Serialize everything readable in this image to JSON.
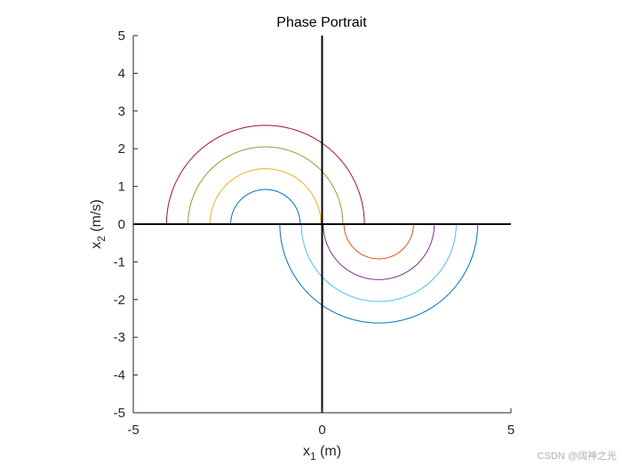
{
  "chart_data": {
    "type": "line",
    "title": "Phase Portrait",
    "xlabel": {
      "base": "x",
      "sub": "1",
      "unit": " (m)"
    },
    "ylabel": {
      "base": "x",
      "sub": "2",
      "unit": " (m/s)"
    },
    "xlim": [
      -5,
      5
    ],
    "ylim": [
      -5,
      5
    ],
    "xticks": [
      -5,
      0,
      5
    ],
    "yticks": [
      5,
      4,
      3,
      2,
      1,
      0,
      -1,
      -2,
      -3,
      -4,
      -5
    ],
    "grid": false,
    "legend": "none",
    "centerlines": {
      "color": "#000000"
    },
    "series": [
      {
        "color": "#0072BD",
        "center": [
          -1.5,
          0
        ],
        "radius": 0.92,
        "half": "upper"
      },
      {
        "color": "#EDB120",
        "center": [
          -1.5,
          0
        ],
        "radius": 1.47,
        "half": "upper"
      },
      {
        "color": "#77AC30",
        "center": [
          -1.5,
          0
        ],
        "radius": 2.05,
        "half": "upper"
      },
      {
        "color": "#A2142F",
        "center": [
          -1.5,
          0
        ],
        "radius": 2.62,
        "half": "upper"
      },
      {
        "color": "#D95319",
        "center": [
          1.5,
          0
        ],
        "radius": 0.92,
        "half": "lower"
      },
      {
        "color": "#7E2F8E",
        "center": [
          1.5,
          0
        ],
        "radius": 1.47,
        "half": "lower"
      },
      {
        "color": "#4DBEEE",
        "center": [
          1.5,
          0
        ],
        "radius": 2.05,
        "half": "lower"
      },
      {
        "color": "#0072BD",
        "center": [
          1.5,
          0
        ],
        "radius": 2.62,
        "half": "lower"
      }
    ]
  },
  "watermark": "CSDN @阔神之光"
}
